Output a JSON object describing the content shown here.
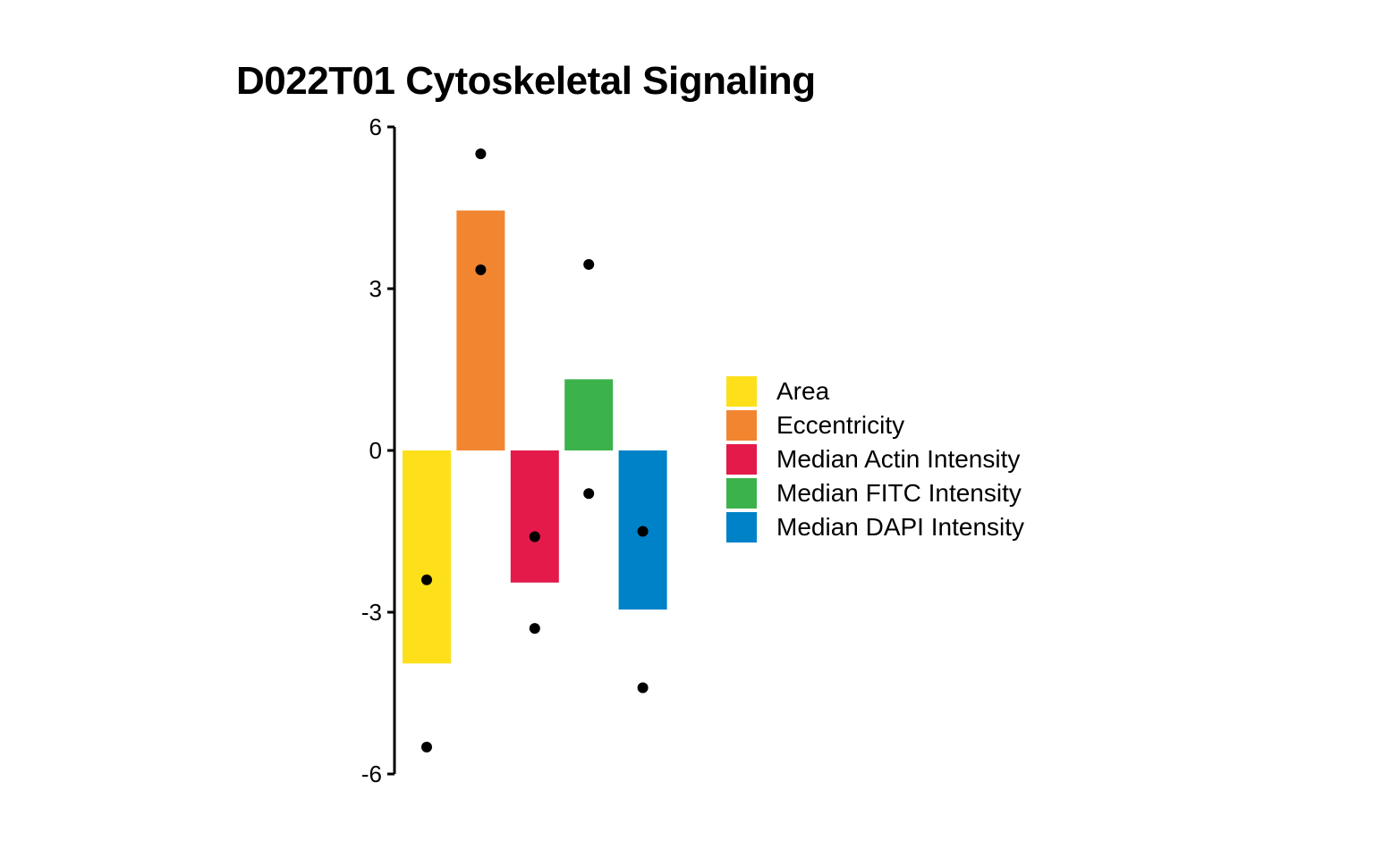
{
  "chart_data": {
    "type": "bar",
    "title": "D022T01 Cytoskeletal Signaling",
    "xlabel": "",
    "ylabel": "",
    "ylim": [
      -6,
      6
    ],
    "yticks": [
      6,
      3,
      0,
      -3,
      -6
    ],
    "ytick_labels": [
      "6",
      "3",
      "0",
      "-3",
      "-6"
    ],
    "grid": false,
    "legend_position": "right",
    "categories": [
      "Area",
      "Eccentricity",
      "Median Actin Intensity",
      "Median FITC Intensity",
      "Median DAPI Intensity"
    ],
    "values": [
      -3.95,
      4.45,
      -2.45,
      1.32,
      -2.95
    ],
    "colors": [
      "#FDE01A",
      "#F28530",
      "#E31A4A",
      "#3BB34A",
      "#0082C8"
    ],
    "points": [
      {
        "category": "Area",
        "values": [
          -2.4,
          -5.5
        ]
      },
      {
        "category": "Eccentricity",
        "values": [
          5.5,
          3.35
        ]
      },
      {
        "category": "Median Actin Intensity",
        "values": [
          -1.6,
          -3.3
        ]
      },
      {
        "category": "Median FITC Intensity",
        "values": [
          3.45,
          -0.8
        ]
      },
      {
        "category": "Median DAPI Intensity",
        "values": [
          -1.5,
          -4.4
        ]
      }
    ],
    "legend": [
      {
        "label": "Area",
        "color": "#FDE01A"
      },
      {
        "label": "Eccentricity",
        "color": "#F28530"
      },
      {
        "label": "Median Actin Intensity",
        "color": "#E31A4A"
      },
      {
        "label": "Median FITC Intensity",
        "color": "#3BB34A"
      },
      {
        "label": "Median DAPI Intensity",
        "color": "#0082C8"
      }
    ]
  }
}
